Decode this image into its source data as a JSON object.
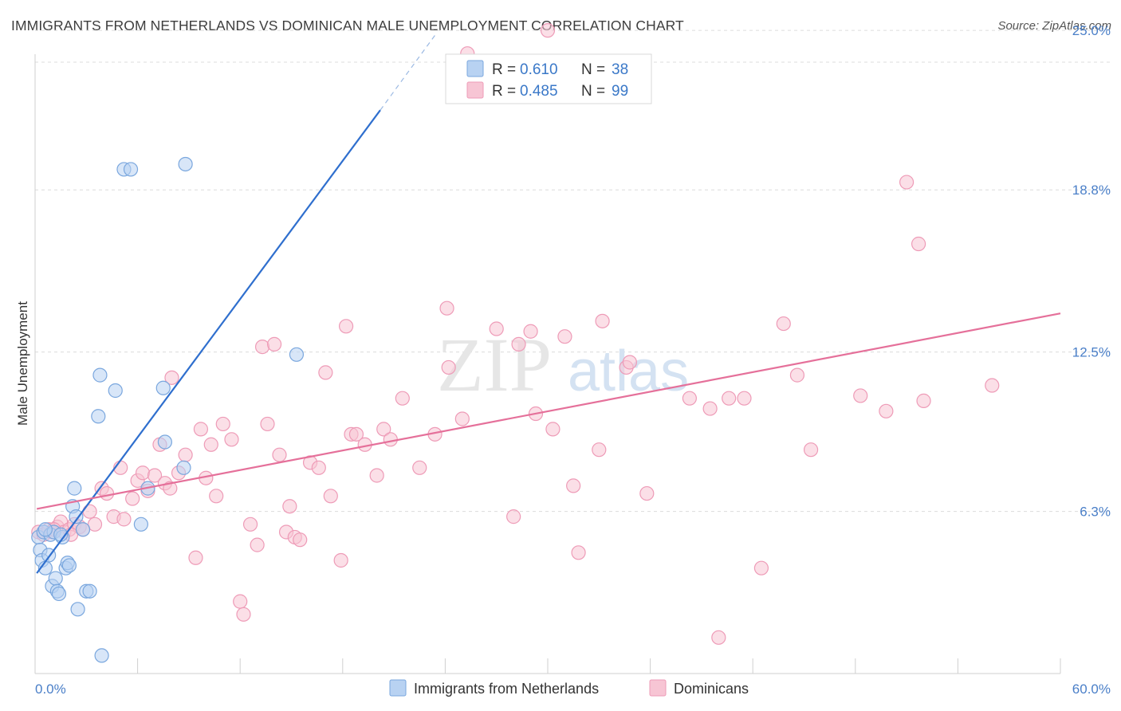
{
  "header": {
    "title": "IMMIGRANTS FROM NETHERLANDS VS DOMINICAN MALE UNEMPLOYMENT CORRELATION CHART",
    "source": "Source: ZipAtlas.com"
  },
  "watermark": {
    "part1": "ZIP",
    "part2": "atlas"
  },
  "legend_top": {
    "rows": [
      {
        "r_label": "R =",
        "r_value": "0.610",
        "n_label": "N =",
        "n_value": "38"
      },
      {
        "r_label": "R =",
        "r_value": "0.485",
        "n_label": "N =",
        "n_value": "99"
      }
    ]
  },
  "legend_bottom": {
    "items": [
      "Immigrants from Netherlands",
      "Dominicans"
    ]
  },
  "colors": {
    "blue_fill": "#b8d2f2",
    "blue_stroke": "#7aa7de",
    "blue_line": "#2f6fce",
    "pink_fill": "#f7c5d4",
    "pink_stroke": "#ee9bb7",
    "pink_line": "#e5709a",
    "grid": "#dcdcdc",
    "tick_text": "#4a7fc8"
  },
  "chart_data": {
    "type": "scatter",
    "title": "IMMIGRANTS FROM NETHERLANDS VS DOMINICAN MALE UNEMPLOYMENT CORRELATION CHART",
    "xlabel": "",
    "ylabel": "Male Unemployment",
    "xlim": [
      0,
      60
    ],
    "ylim": [
      0,
      25.5
    ],
    "x_tick_labels": [
      "0.0%",
      "60.0%"
    ],
    "y_ticks": [
      6.3,
      12.5,
      18.8,
      25.0
    ],
    "y_tick_labels": [
      "6.3%",
      "12.5%",
      "18.8%",
      "25.0%"
    ],
    "grid": true,
    "legend_position": "top-center",
    "series": [
      {
        "name": "Immigrants from Netherlands",
        "color": "blue",
        "points": [
          [
            0.2,
            5.3
          ],
          [
            0.3,
            4.8
          ],
          [
            0.4,
            4.4
          ],
          [
            0.5,
            5.5
          ],
          [
            0.6,
            4.1
          ],
          [
            0.8,
            4.6
          ],
          [
            0.9,
            5.4
          ],
          [
            1.0,
            3.4
          ],
          [
            1.1,
            5.5
          ],
          [
            1.2,
            3.7
          ],
          [
            1.3,
            3.2
          ],
          [
            1.4,
            3.1
          ],
          [
            1.6,
            5.3
          ],
          [
            1.8,
            4.1
          ],
          [
            1.9,
            4.3
          ],
          [
            2.0,
            4.2
          ],
          [
            2.2,
            6.5
          ],
          [
            2.3,
            7.2
          ],
          [
            2.4,
            6.1
          ],
          [
            2.5,
            2.5
          ],
          [
            2.8,
            5.6
          ],
          [
            3.0,
            3.2
          ],
          [
            3.2,
            3.2
          ],
          [
            3.8,
            11.6
          ],
          [
            3.7,
            10.0
          ],
          [
            3.9,
            0.7
          ],
          [
            4.7,
            11.0
          ],
          [
            5.2,
            19.6
          ],
          [
            5.6,
            19.6
          ],
          [
            6.2,
            5.8
          ],
          [
            6.6,
            7.2
          ],
          [
            7.5,
            11.1
          ],
          [
            7.6,
            9.0
          ],
          [
            8.7,
            8.0
          ],
          [
            8.8,
            19.8
          ],
          [
            15.3,
            12.4
          ],
          [
            0.6,
            5.6
          ],
          [
            1.5,
            5.4
          ]
        ],
        "trendline": {
          "x": [
            0.1,
            20.2
          ],
          "y": [
            3.9,
            21.9
          ]
        },
        "trendline_dashed_extension": {
          "x": [
            20.2,
            23.5
          ],
          "y": [
            21.9,
            24.9
          ]
        }
      },
      {
        "name": "Dominicans",
        "color": "pink",
        "points": [
          [
            0.2,
            5.5
          ],
          [
            0.5,
            5.4
          ],
          [
            0.8,
            5.6
          ],
          [
            1.0,
            5.5
          ],
          [
            1.3,
            5.7
          ],
          [
            1.5,
            5.9
          ],
          [
            1.7,
            5.5
          ],
          [
            2.0,
            5.6
          ],
          [
            2.3,
            5.8
          ],
          [
            2.6,
            5.7
          ],
          [
            2.8,
            5.6
          ],
          [
            3.2,
            6.3
          ],
          [
            3.5,
            5.8
          ],
          [
            3.9,
            7.2
          ],
          [
            4.2,
            7.0
          ],
          [
            4.6,
            6.1
          ],
          [
            5.0,
            8.0
          ],
          [
            5.2,
            6.0
          ],
          [
            5.7,
            6.8
          ],
          [
            6.0,
            7.5
          ],
          [
            6.3,
            7.8
          ],
          [
            6.6,
            7.1
          ],
          [
            7.0,
            7.7
          ],
          [
            7.3,
            8.9
          ],
          [
            7.6,
            7.4
          ],
          [
            7.9,
            7.2
          ],
          [
            8.0,
            11.5
          ],
          [
            8.4,
            7.8
          ],
          [
            8.8,
            8.5
          ],
          [
            9.4,
            4.5
          ],
          [
            9.7,
            9.5
          ],
          [
            10.0,
            7.6
          ],
          [
            10.3,
            8.9
          ],
          [
            10.6,
            6.9
          ],
          [
            11.0,
            9.7
          ],
          [
            11.5,
            9.1
          ],
          [
            12.0,
            2.8
          ],
          [
            12.2,
            2.3
          ],
          [
            12.6,
            5.8
          ],
          [
            13.0,
            5.0
          ],
          [
            13.3,
            12.7
          ],
          [
            13.6,
            9.7
          ],
          [
            14.0,
            12.8
          ],
          [
            14.3,
            8.5
          ],
          [
            14.7,
            5.5
          ],
          [
            14.9,
            6.5
          ],
          [
            15.2,
            5.3
          ],
          [
            15.5,
            5.2
          ],
          [
            16.1,
            8.2
          ],
          [
            16.6,
            8.0
          ],
          [
            17.0,
            11.7
          ],
          [
            17.3,
            6.9
          ],
          [
            17.9,
            4.4
          ],
          [
            18.2,
            13.5
          ],
          [
            18.5,
            9.3
          ],
          [
            18.8,
            9.3
          ],
          [
            19.3,
            8.9
          ],
          [
            20.0,
            7.7
          ],
          [
            20.4,
            9.5
          ],
          [
            20.8,
            9.1
          ],
          [
            21.5,
            10.7
          ],
          [
            22.5,
            8.0
          ],
          [
            23.4,
            9.3
          ],
          [
            24.1,
            14.2
          ],
          [
            24.2,
            11.9
          ],
          [
            25.0,
            9.9
          ],
          [
            25.3,
            24.1
          ],
          [
            27.0,
            13.4
          ],
          [
            28.0,
            6.1
          ],
          [
            28.3,
            12.8
          ],
          [
            29.0,
            13.3
          ],
          [
            29.3,
            10.1
          ],
          [
            30.0,
            25.0
          ],
          [
            30.3,
            9.5
          ],
          [
            31.0,
            13.1
          ],
          [
            31.5,
            7.3
          ],
          [
            31.8,
            4.7
          ],
          [
            33.0,
            8.7
          ],
          [
            33.2,
            13.7
          ],
          [
            34.6,
            11.9
          ],
          [
            34.8,
            12.1
          ],
          [
            35.8,
            7.0
          ],
          [
            38.3,
            10.7
          ],
          [
            39.5,
            10.3
          ],
          [
            40.0,
            1.4
          ],
          [
            40.6,
            10.7
          ],
          [
            41.5,
            10.7
          ],
          [
            42.5,
            4.1
          ],
          [
            43.8,
            13.6
          ],
          [
            44.6,
            11.6
          ],
          [
            45.4,
            8.7
          ],
          [
            48.3,
            10.8
          ],
          [
            49.8,
            10.2
          ],
          [
            51.0,
            19.1
          ],
          [
            51.7,
            16.7
          ],
          [
            52.0,
            10.6
          ],
          [
            56.0,
            11.2
          ],
          [
            1.1,
            5.6
          ],
          [
            2.1,
            5.4
          ]
        ],
        "trendline": {
          "x": [
            0.1,
            60.0
          ],
          "y": [
            6.4,
            14.0
          ]
        }
      }
    ]
  }
}
